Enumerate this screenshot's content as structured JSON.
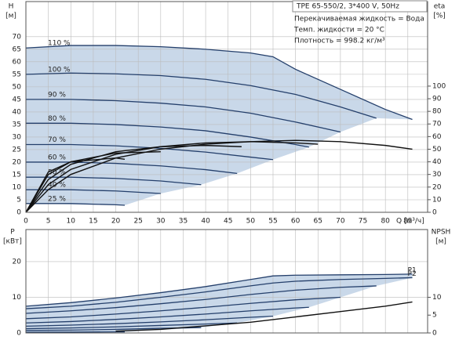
{
  "chart_data": [
    {
      "type": "line",
      "header": "TPE 65-550/2, 3*400 V, 50Hz",
      "annotations": [
        "Перекачиваемая жидкость = Вода",
        "Темп. жидкости = 20 °C",
        "Плотность = 998.2 кг/м³"
      ],
      "y_label": "H",
      "y_unit": "[м]",
      "y2_label": "eta",
      "y2_unit": "[%]",
      "x_label": "Q [м³/ч]",
      "xlim": [
        0,
        89.4
      ],
      "xticks": [
        0,
        5,
        10,
        15,
        20,
        25,
        30,
        35,
        40,
        45,
        50,
        55,
        60,
        65,
        70,
        75,
        80,
        85
      ],
      "ylim": [
        0,
        84
      ],
      "yticks": [
        0,
        5,
        10,
        15,
        20,
        25,
        30,
        35,
        40,
        45,
        50,
        55,
        60,
        65,
        70
      ],
      "y2lim": [
        0,
        167
      ],
      "y2ticks": [
        0,
        10,
        20,
        30,
        40,
        50,
        60,
        70,
        80,
        90,
        100
      ],
      "grid": true,
      "envelope_color": "#c9d8e9",
      "xtick_labels": true,
      "name_position": "start",
      "series": [
        {
          "name": "110 %",
          "color": "#243f6b",
          "x": [
            0,
            10,
            20,
            30,
            40,
            50,
            55,
            60,
            70,
            80,
            86
          ],
          "values": [
            65.5,
            66.5,
            66.5,
            66,
            65,
            63.5,
            62,
            57,
            49,
            41,
            37
          ]
        },
        {
          "name": "100 %",
          "color": "#243f6b",
          "x": [
            0,
            10,
            20,
            30,
            40,
            50,
            60,
            70,
            78
          ],
          "values": [
            55,
            55.5,
            55.2,
            54.5,
            53,
            50.5,
            47,
            42,
            37.5
          ]
        },
        {
          "name": "90 %",
          "color": "#243f6b",
          "x": [
            0,
            10,
            20,
            30,
            40,
            50,
            60,
            70
          ],
          "values": [
            45,
            45,
            44.5,
            43.5,
            42,
            39.5,
            36,
            32
          ]
        },
        {
          "name": "80 %",
          "color": "#243f6b",
          "x": [
            0,
            10,
            20,
            30,
            40,
            50,
            60,
            63
          ],
          "values": [
            35.5,
            35.5,
            35,
            34,
            32.5,
            30,
            27,
            26
          ]
        },
        {
          "name": "70 %",
          "color": "#243f6b",
          "x": [
            0,
            10,
            20,
            30,
            40,
            50,
            55
          ],
          "values": [
            27,
            27,
            26.5,
            25.5,
            24,
            22,
            21
          ]
        },
        {
          "name": "60 %",
          "color": "#243f6b",
          "x": [
            0,
            10,
            20,
            30,
            40,
            47
          ],
          "values": [
            20,
            20,
            19.5,
            18.5,
            17,
            15.5
          ]
        },
        {
          "name": "50 %",
          "color": "#243f6b",
          "x": [
            0,
            10,
            20,
            30,
            39
          ],
          "values": [
            14,
            14,
            13.5,
            12.5,
            11
          ]
        },
        {
          "name": "40 %",
          "color": "#243f6b",
          "x": [
            0,
            10,
            20,
            30
          ],
          "values": [
            9,
            9,
            8.5,
            7.5
          ]
        },
        {
          "name": "25 %",
          "color": "#243f6b",
          "x": [
            0,
            10,
            20,
            22
          ],
          "values": [
            3.5,
            3.5,
            3,
            2.8
          ]
        },
        {
          "axis": "y2",
          "color": "#111111",
          "x": [
            0,
            5,
            10,
            20,
            30,
            40,
            50,
            60,
            70,
            80,
            86
          ],
          "values": [
            0,
            18,
            30,
            43,
            50,
            54,
            56,
            57,
            56,
            53,
            50
          ]
        },
        {
          "axis": "y2",
          "color": "#111111",
          "x": [
            0,
            5,
            10,
            20,
            30,
            40,
            50,
            60,
            65
          ],
          "values": [
            0,
            22,
            34,
            46,
            52,
            55,
            56,
            55,
            54
          ]
        },
        {
          "axis": "y2",
          "color": "#111111",
          "x": [
            0,
            5,
            10,
            20,
            30,
            40,
            48
          ],
          "values": [
            0,
            26,
            38,
            48,
            52,
            53,
            52
          ]
        },
        {
          "axis": "y2",
          "color": "#111111",
          "x": [
            0,
            5,
            10,
            20,
            30
          ],
          "values": [
            0,
            30,
            40,
            47,
            48
          ]
        },
        {
          "axis": "y2",
          "color": "#111111",
          "x": [
            0,
            5,
            10,
            20,
            22
          ],
          "values": [
            0,
            32,
            40,
            43,
            42
          ]
        }
      ]
    },
    {
      "type": "line",
      "y_label": "P",
      "y_unit": "[кВт]",
      "y2_label": "NPSH",
      "y2_unit": "[м]",
      "xlim": [
        0,
        89.4
      ],
      "xticks": [
        0,
        5,
        10,
        15,
        20,
        25,
        30,
        35,
        40,
        45,
        50,
        55,
        60,
        65,
        70,
        75,
        80,
        85
      ],
      "ylim": [
        0,
        29
      ],
      "yticks": [
        0,
        10,
        20
      ],
      "y2lim": [
        0,
        29
      ],
      "y2ticks": [
        0,
        5,
        10
      ],
      "grid": true,
      "envelope_color": "#c9d8e9",
      "xtick_labels": false,
      "name_position": "end",
      "series": [
        {
          "name": "P1",
          "color": "#243f6b",
          "x": [
            0,
            10,
            20,
            30,
            40,
            50,
            55,
            60,
            70,
            80,
            86
          ],
          "values": [
            7.5,
            8.5,
            9.8,
            11.3,
            13,
            15,
            16,
            16.2,
            16.3,
            16.4,
            16.5
          ]
        },
        {
          "name": "P2",
          "color": "#243f6b",
          "x": [
            0,
            10,
            20,
            30,
            40,
            50,
            55,
            60,
            70,
            80,
            86
          ],
          "values": [
            6.8,
            7.5,
            8.6,
            10,
            11.5,
            13.2,
            14,
            14.5,
            15,
            15.3,
            15.5
          ]
        },
        {
          "color": "#243f6b",
          "x": [
            0,
            10,
            20,
            30,
            40,
            50,
            60,
            70,
            78
          ],
          "values": [
            5.5,
            6.2,
            7.1,
            8.2,
            9.4,
            10.8,
            12,
            12.8,
            13.2
          ]
        },
        {
          "color": "#243f6b",
          "x": [
            0,
            10,
            20,
            30,
            40,
            50,
            60,
            70
          ],
          "values": [
            4,
            4.5,
            5.3,
            6.2,
            7.2,
            8.3,
            9.3,
            10
          ]
        },
        {
          "color": "#243f6b",
          "x": [
            0,
            10,
            20,
            30,
            40,
            50,
            60,
            63
          ],
          "values": [
            2.8,
            3.2,
            3.8,
            4.5,
            5.3,
            6.2,
            7,
            7.2
          ]
        },
        {
          "color": "#243f6b",
          "x": [
            0,
            10,
            20,
            30,
            40,
            50,
            55
          ],
          "values": [
            1.9,
            2.2,
            2.6,
            3.1,
            3.7,
            4.4,
            4.7
          ]
        },
        {
          "color": "#243f6b",
          "x": [
            0,
            10,
            20,
            30,
            40,
            47
          ],
          "values": [
            1.2,
            1.4,
            1.7,
            2.1,
            2.5,
            2.8
          ]
        },
        {
          "color": "#243f6b",
          "x": [
            0,
            10,
            20,
            30,
            39
          ],
          "values": [
            0.7,
            0.8,
            1,
            1.3,
            1.5
          ]
        },
        {
          "color": "#243f6b",
          "x": [
            0,
            10,
            20,
            22
          ],
          "values": [
            0.2,
            0.25,
            0.3,
            0.3
          ]
        },
        {
          "axis": "y2",
          "color": "#111111",
          "x": [
            20,
            30,
            40,
            50,
            60,
            70,
            80,
            86
          ],
          "values": [
            0.5,
            1,
            2,
            3,
            4.5,
            6,
            7.5,
            8.7
          ]
        }
      ]
    }
  ]
}
